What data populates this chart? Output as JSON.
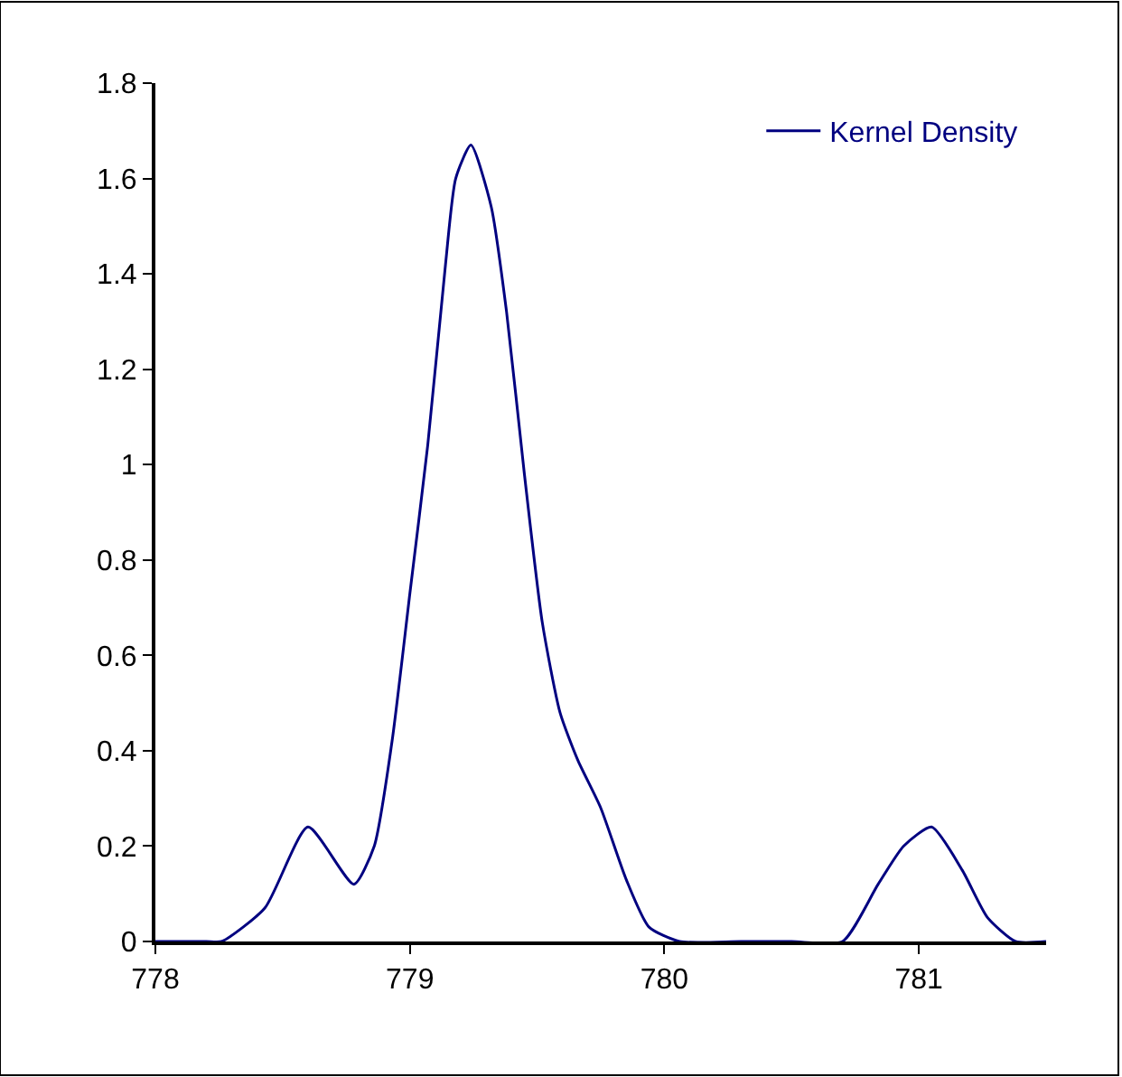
{
  "chart_data": {
    "type": "line",
    "x": [
      778.0,
      778.2,
      778.26,
      778.43,
      778.6,
      778.78,
      778.86,
      778.93,
      779.0,
      779.07,
      779.14,
      779.18,
      779.24,
      779.32,
      779.38,
      779.45,
      779.52,
      779.59,
      779.66,
      779.75,
      779.85,
      779.94,
      780.06,
      780.3,
      780.5,
      780.7,
      780.84,
      780.94,
      781.05,
      781.17,
      781.27,
      781.38,
      781.5
    ],
    "series": [
      {
        "name": "Kernel Density",
        "color": "#000080",
        "values": [
          0,
          0,
          0,
          0.07,
          0.24,
          0.12,
          0.2,
          0.42,
          0.73,
          1.04,
          1.42,
          1.6,
          1.67,
          1.54,
          1.32,
          0.98,
          0.67,
          0.48,
          0.38,
          0.28,
          0.13,
          0.03,
          0,
          0,
          0,
          0,
          0.12,
          0.2,
          0.24,
          0.15,
          0.05,
          0,
          0
        ]
      }
    ],
    "xlim": [
      778,
      781.5
    ],
    "xticks": [
      778,
      779,
      780,
      781
    ],
    "ylim": [
      0,
      1.8
    ],
    "yticks": [
      0,
      0.2,
      0.4,
      0.6,
      0.8,
      1,
      1.2,
      1.4,
      1.6,
      1.8
    ],
    "legend": "top right",
    "marker": "none",
    "line_style": "solid"
  }
}
